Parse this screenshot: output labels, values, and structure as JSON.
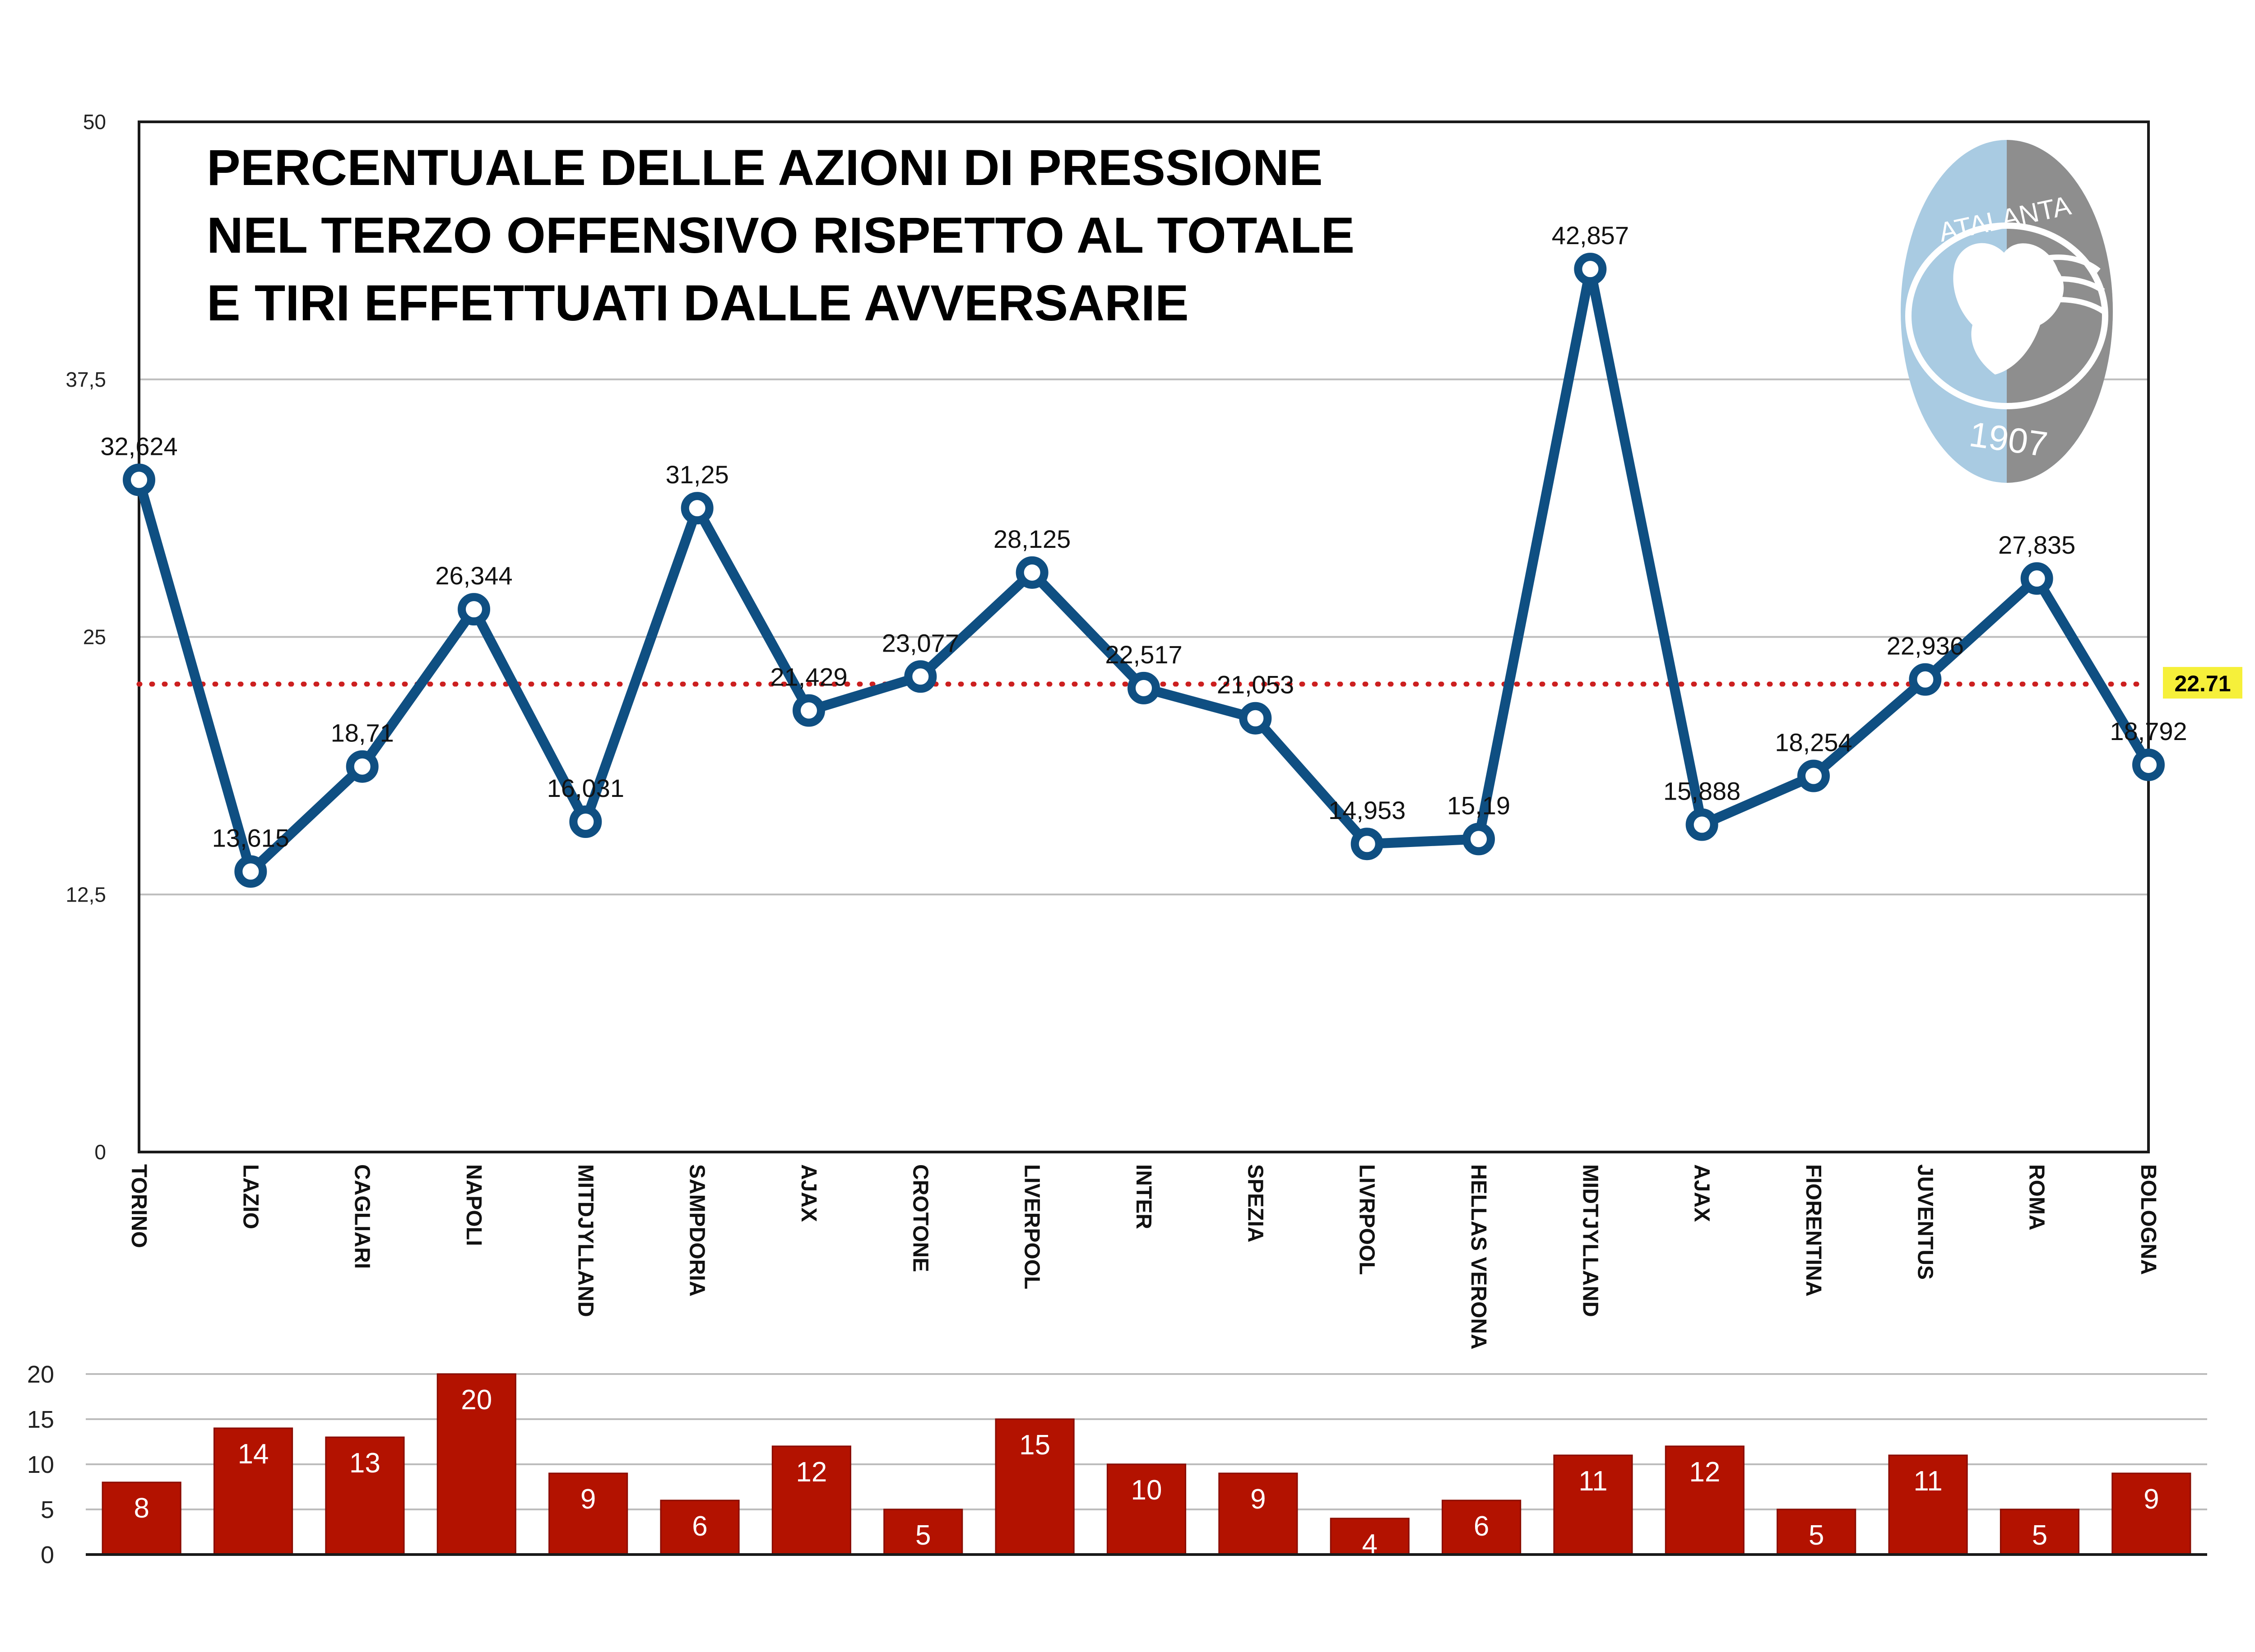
{
  "title_lines": [
    "PERCENTUALE DELLE AZIONI DI PRESSIONE",
    "NEL TERZO OFFENSIVO RISPETTO AL TOTALE",
    "E TIRI EFFETTUATI DALLE AVVERSARIE"
  ],
  "logo": {
    "name": "atalanta-logo",
    "text_top": "ATALANTA",
    "text_bottom": "1907"
  },
  "colors": {
    "line": "#0f4f82",
    "bar": "#b31200",
    "average": "#cc1f1f",
    "average_badge": "#f6f03a",
    "grid": "#bdbdbd",
    "logo_light": "#a9cbe2",
    "logo_dark": "#8e8e8e"
  },
  "chart_data": [
    {
      "type": "line",
      "categories": [
        "TORINO",
        "LAZIO",
        "CAGLIARI",
        "NAPOLI",
        "MITDJYLLAND",
        "SAMPDORIA",
        "AJAX",
        "CROTONE",
        "LIVERPOOL",
        "INTER",
        "SPEZIA",
        "LIVRPOOL",
        "HELLAS VERONA",
        "MIDTJYLLAND",
        "AJAX",
        "FIORENTINA",
        "JUVENTUS",
        "ROMA",
        "BOLOGNA"
      ],
      "values": [
        32.624,
        13.615,
        18.71,
        26.344,
        16.031,
        31.25,
        21.429,
        23.077,
        28.125,
        22.517,
        21.053,
        14.953,
        15.19,
        42.857,
        15.888,
        18.254,
        22.936,
        27.835,
        18.792
      ],
      "value_labels": [
        "32,624",
        "13,615",
        "18,71",
        "26,344",
        "16,031",
        "31,25",
        "21,429",
        "23,077",
        "28,125",
        "22,517",
        "21,053",
        "14,953",
        "15,19",
        "42,857",
        "15,888",
        "18,254",
        "22,936",
        "27,835",
        "18,792"
      ],
      "ylim": [
        0,
        50
      ],
      "yticks": [
        0,
        12.5,
        25,
        37.5,
        50
      ],
      "ytick_labels": [
        "0",
        "12,5",
        "25",
        "37,5",
        "50"
      ],
      "average": 22.71,
      "average_label": "22.71",
      "grid": true
    },
    {
      "type": "bar",
      "categories": [
        "TORINO",
        "LAZIO",
        "CAGLIARI",
        "NAPOLI",
        "MITDJYLLAND",
        "SAMPDORIA",
        "AJAX",
        "CROTONE",
        "LIVERPOOL",
        "INTER",
        "SPEZIA",
        "LIVRPOOL",
        "HELLAS VERONA",
        "MIDTJYLLAND",
        "AJAX",
        "FIORENTINA",
        "JUVENTUS",
        "ROMA",
        "BOLOGNA"
      ],
      "values": [
        8,
        14,
        13,
        20,
        9,
        6,
        12,
        5,
        15,
        10,
        9,
        4,
        6,
        11,
        12,
        5,
        11,
        5,
        9
      ],
      "value_labels": [
        "8",
        "14",
        "13",
        "20",
        "9",
        "6",
        "12",
        "5",
        "15",
        "10",
        "9",
        "4",
        "6",
        "11",
        "12",
        "5",
        "11",
        "5",
        "9"
      ],
      "ylim": [
        0,
        20
      ],
      "yticks": [
        0,
        5,
        10,
        15,
        20
      ],
      "ytick_labels": [
        "0",
        "5",
        "10",
        "15",
        "20"
      ],
      "grid": true
    }
  ]
}
